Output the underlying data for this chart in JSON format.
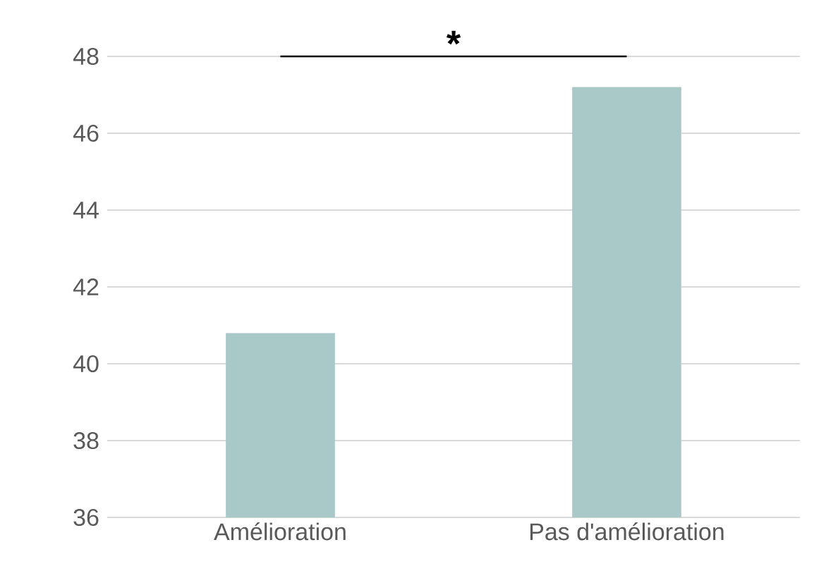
{
  "chart_data": {
    "type": "bar",
    "categories": [
      "Amélioration",
      "Pas d'amélioration"
    ],
    "values": [
      40.8,
      47.2
    ],
    "color": "#a9c8c8",
    "ylim": [
      36,
      48
    ],
    "yticks": [
      36,
      38,
      40,
      42,
      44,
      46,
      48
    ],
    "grid": "y",
    "annotations": [
      "*"
    ]
  }
}
